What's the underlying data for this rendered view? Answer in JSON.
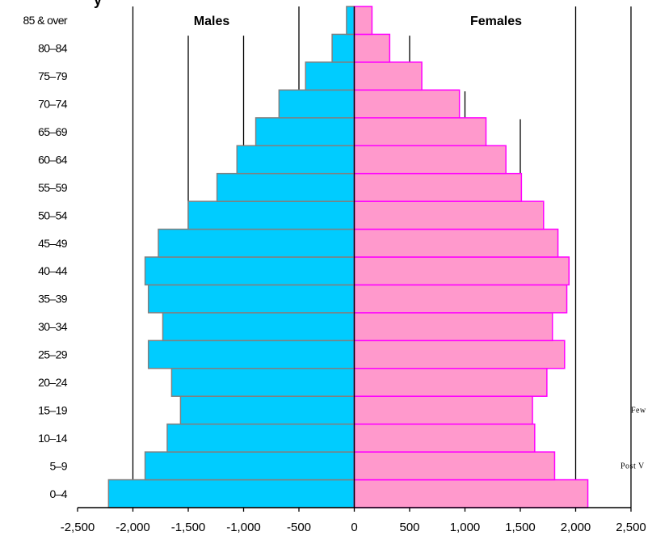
{
  "chart_data": {
    "type": "bar",
    "orientation": "horizontal",
    "title_fragment": "y",
    "side_labels": {
      "left": "Males",
      "right": "Females"
    },
    "categories": [
      "0–4",
      "5–9",
      "10–14",
      "15–19",
      "20–24",
      "25–29",
      "30–34",
      "35–39",
      "40–44",
      "45–49",
      "50–54",
      "55–59",
      "60–64",
      "65–69",
      "70–74",
      "75–79",
      "80–84",
      "85 & over"
    ],
    "series": [
      {
        "name": "Males",
        "color": "#00CCFF",
        "border": "#808080",
        "values": [
          -2220,
          -1890,
          -1690,
          -1570,
          -1650,
          -1860,
          -1730,
          -1860,
          -1890,
          -1770,
          -1500,
          -1240,
          -1060,
          -890,
          -680,
          -440,
          -200,
          -70
        ]
      },
      {
        "name": "Females",
        "color": "#FF99CC",
        "border": "#FF00FF",
        "values": [
          2110,
          1810,
          1630,
          1610,
          1740,
          1900,
          1790,
          1920,
          1940,
          1840,
          1710,
          1510,
          1370,
          1190,
          950,
          610,
          320,
          160
        ]
      }
    ],
    "xlim": [
      -2500,
      2500
    ],
    "x_ticks": [
      -2500,
      -2000,
      -1500,
      -1000,
      -500,
      0,
      500,
      1000,
      1500,
      2000,
      2500
    ],
    "x_tick_labels": [
      "-2,500",
      "-2,000",
      "-1,500",
      "-1,000",
      "-500",
      "0",
      "500",
      "1,000",
      "1,500",
      "2,000",
      "2,500"
    ],
    "grid_lines": [
      {
        "x": -2000,
        "top_category": "85 & over"
      },
      {
        "x": -1500,
        "top_category": "80–84"
      },
      {
        "x": -1000,
        "top_category": "80–84"
      },
      {
        "x": -500,
        "top_category": "85 & over"
      },
      {
        "x": 500,
        "top_category": "80–84"
      },
      {
        "x": 1000,
        "top_category": "70–74"
      },
      {
        "x": 1500,
        "top_category": "65–69"
      },
      {
        "x": 2000,
        "top_category": "85 & over"
      },
      {
        "x": 2500,
        "top_category": "85 & over"
      }
    ],
    "annotations": [
      {
        "text": "Few",
        "category": "15–19"
      },
      {
        "text": "Post V",
        "category": "5–9"
      }
    ],
    "legend": "none"
  }
}
